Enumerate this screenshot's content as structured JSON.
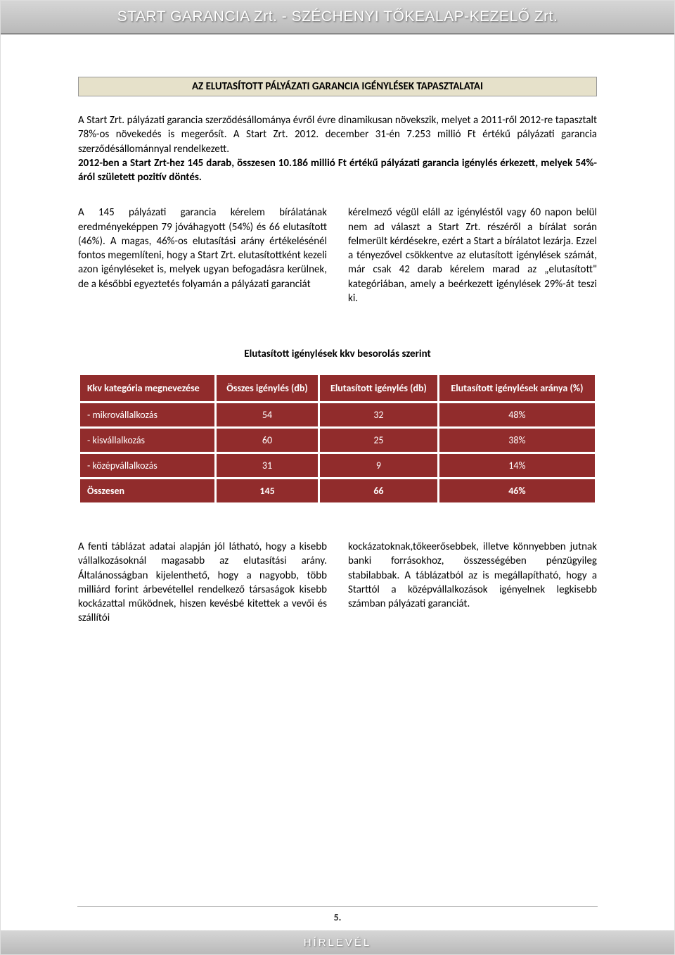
{
  "header": {
    "title": "START GARANCIA Zrt. - SZÉCHENYI TŐKEALAP-KEZELŐ Zrt."
  },
  "section": {
    "title": "AZ ELUTASÍTOTT PÁLYÁZATI GARANCIA IGÉNYLÉSEK TAPASZTALATAI",
    "intro": "A Start Zrt. pályázati garancia szerződésállománya évről évre dinamikusan növekszik, melyet a 2011-ről 2012-re tapasztalt 78%-os növekedés is megerősít. A Start Zrt. 2012. december 31-én 7.253 millió Ft értékű pályázati garancia szerződésállománnyal rendelkezett.",
    "intro_bold": "2012-ben a Start Zrt-hez 145 darab, összesen 10.186 millió Ft értékű pályázati garancia igénylés érkezett, melyek 54%-áról született pozitív döntés.",
    "col_left": "A 145 pályázati garancia kérelem bírálatának eredményeképpen 79 jóváhagyott (54%) és 66 elutasított (46%). A magas, 46%-os elutasítási arány értékelésénél fontos megemlíteni, hogy a Start Zrt. elutasítottként kezeli azon igényléseket is, melyek ugyan befogadásra kerülnek, de a későbbi egyeztetés folyamán a pályázati garanciát",
    "col_right": "kérelmező végül eláll az igényléstől vagy 60 napon belül nem ad választ a Start Zrt. részéről a bírálat során felmerült kérdésekre, ezért a Start a bírálatot lezárja. Ezzel a tényezővel csökkentve az elutasított igénylések számát, már csak 42 darab kérelem marad az „elutasított\" kategóriában, amely a beérkezett igénylések 29%-át teszi ki."
  },
  "table": {
    "title": "Elutasított igénylések kkv besorolás szerint",
    "columns": [
      "Kkv kategória megnevezése",
      "Összes igénylés (db)",
      "Elutasított igénylés (db)",
      "Elutasított igénylések aránya (%)"
    ],
    "rows": [
      [
        "- mikrovállalkozás",
        "54",
        "32",
        "48%"
      ],
      [
        "- kisvállalkozás",
        "60",
        "25",
        "38%"
      ],
      [
        "- középvállalkozás",
        "31",
        "9",
        "14%"
      ],
      [
        "Összesen",
        "145",
        "66",
        "46%"
      ]
    ],
    "header_bg": "#912c2c",
    "row_bg": "#912c2c",
    "text_color": "#ffffff"
  },
  "bottom": {
    "col_left": "A fenti táblázat adatai alapján jól látható, hogy a kisebb vállalkozásoknál magasabb az elutasítási arány. Általánosságban kijelenthető, hogy a nagyobb, több milliárd forint árbevétellel rendelkező társaságok kisebb kockázattal működnek, hiszen kevésbé kitettek a vevői és szállítói",
    "col_right": "kockázatoknak,tőkeerősebbek, illetve könnyebben jutnak banki forrásokhoz, összességében pénzügyileg stabilabbak. A táblázatból az is megállapítható, hogy a Starttól a középvállalkozások igényelnek legkisebb számban pályázati garanciát."
  },
  "footer": {
    "page_number": "5.",
    "label": "HÍRLEVÉL"
  }
}
